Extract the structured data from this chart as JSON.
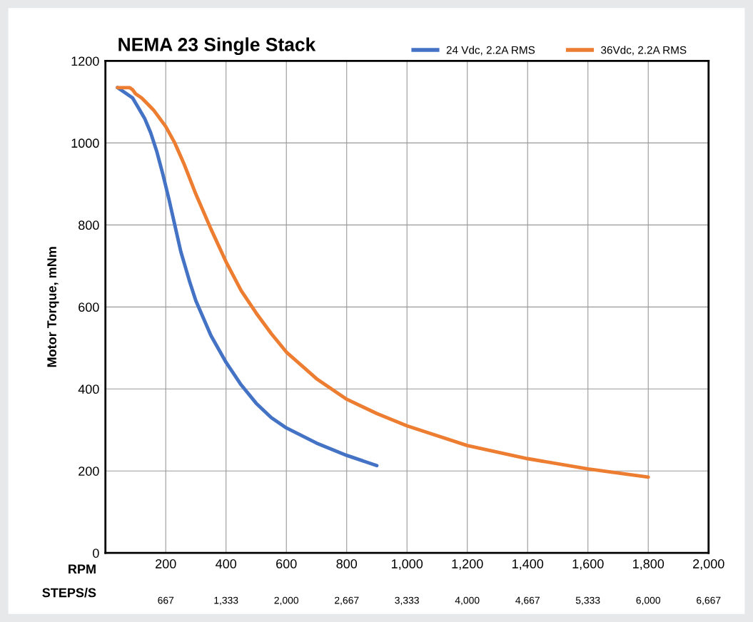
{
  "chart_data": {
    "type": "line",
    "title": "NEMA 23 Single Stack",
    "ylabel": "Motor Torque, mNm",
    "xlabel": "RPM",
    "x2label": "STEPS/S",
    "xlim": [
      0,
      2000
    ],
    "xticks": [
      {
        "value": 0,
        "label": null
      },
      {
        "value": 200,
        "label": "200"
      },
      {
        "value": 400,
        "label": "400"
      },
      {
        "value": 600,
        "label": "600"
      },
      {
        "value": 800,
        "label": "800"
      },
      {
        "value": 1000,
        "label": "1,000"
      },
      {
        "value": 1200,
        "label": "1,200"
      },
      {
        "value": 1400,
        "label": "1,400"
      },
      {
        "value": 1600,
        "label": "1,600"
      },
      {
        "value": 1800,
        "label": "1,800"
      },
      {
        "value": 2000,
        "label": "2,000"
      }
    ],
    "x2lim": [
      0,
      6667
    ],
    "x2ticks": [
      {
        "value": 667,
        "label": "667"
      },
      {
        "value": 1333,
        "label": "1,333"
      },
      {
        "value": 2000,
        "label": "2,000"
      },
      {
        "value": 2667,
        "label": "2,667"
      },
      {
        "value": 3333,
        "label": "3,333"
      },
      {
        "value": 4000,
        "label": "4,000"
      },
      {
        "value": 4667,
        "label": "4,667"
      },
      {
        "value": 5333,
        "label": "5,333"
      },
      {
        "value": 6000,
        "label": "6,000"
      },
      {
        "value": 6667,
        "label": "6,667"
      }
    ],
    "ylim": [
      0,
      1200
    ],
    "yticks": [
      0,
      200,
      400,
      600,
      800,
      1000,
      1200
    ],
    "grid": true,
    "legend": "top right",
    "marker": "none",
    "line_style": "solid",
    "series": [
      {
        "name": "24 Vdc, 2.2A RMS",
        "color": "#4472c4",
        "x": [
          40,
          60,
          90,
          110,
          130,
          150,
          170,
          190,
          210,
          230,
          250,
          280,
          300,
          350,
          400,
          450,
          500,
          550,
          600,
          700,
          800,
          900
        ],
        "values": [
          1135,
          1125,
          1110,
          1085,
          1060,
          1025,
          980,
          925,
          865,
          800,
          735,
          660,
          615,
          530,
          465,
          410,
          365,
          330,
          305,
          268,
          238,
          213
        ]
      },
      {
        "name": "36Vdc, 2.2A RMS",
        "color": "#ed7d31",
        "x": [
          40,
          60,
          80,
          90,
          100,
          120,
          140,
          160,
          180,
          200,
          230,
          260,
          300,
          350,
          400,
          450,
          500,
          550,
          600,
          700,
          800,
          900,
          1000,
          1200,
          1400,
          1600,
          1800
        ],
        "values": [
          1135,
          1135,
          1135,
          1130,
          1120,
          1110,
          1095,
          1080,
          1060,
          1040,
          1000,
          950,
          875,
          790,
          710,
          640,
          585,
          535,
          490,
          425,
          375,
          340,
          310,
          262,
          230,
          205,
          185
        ]
      }
    ]
  }
}
